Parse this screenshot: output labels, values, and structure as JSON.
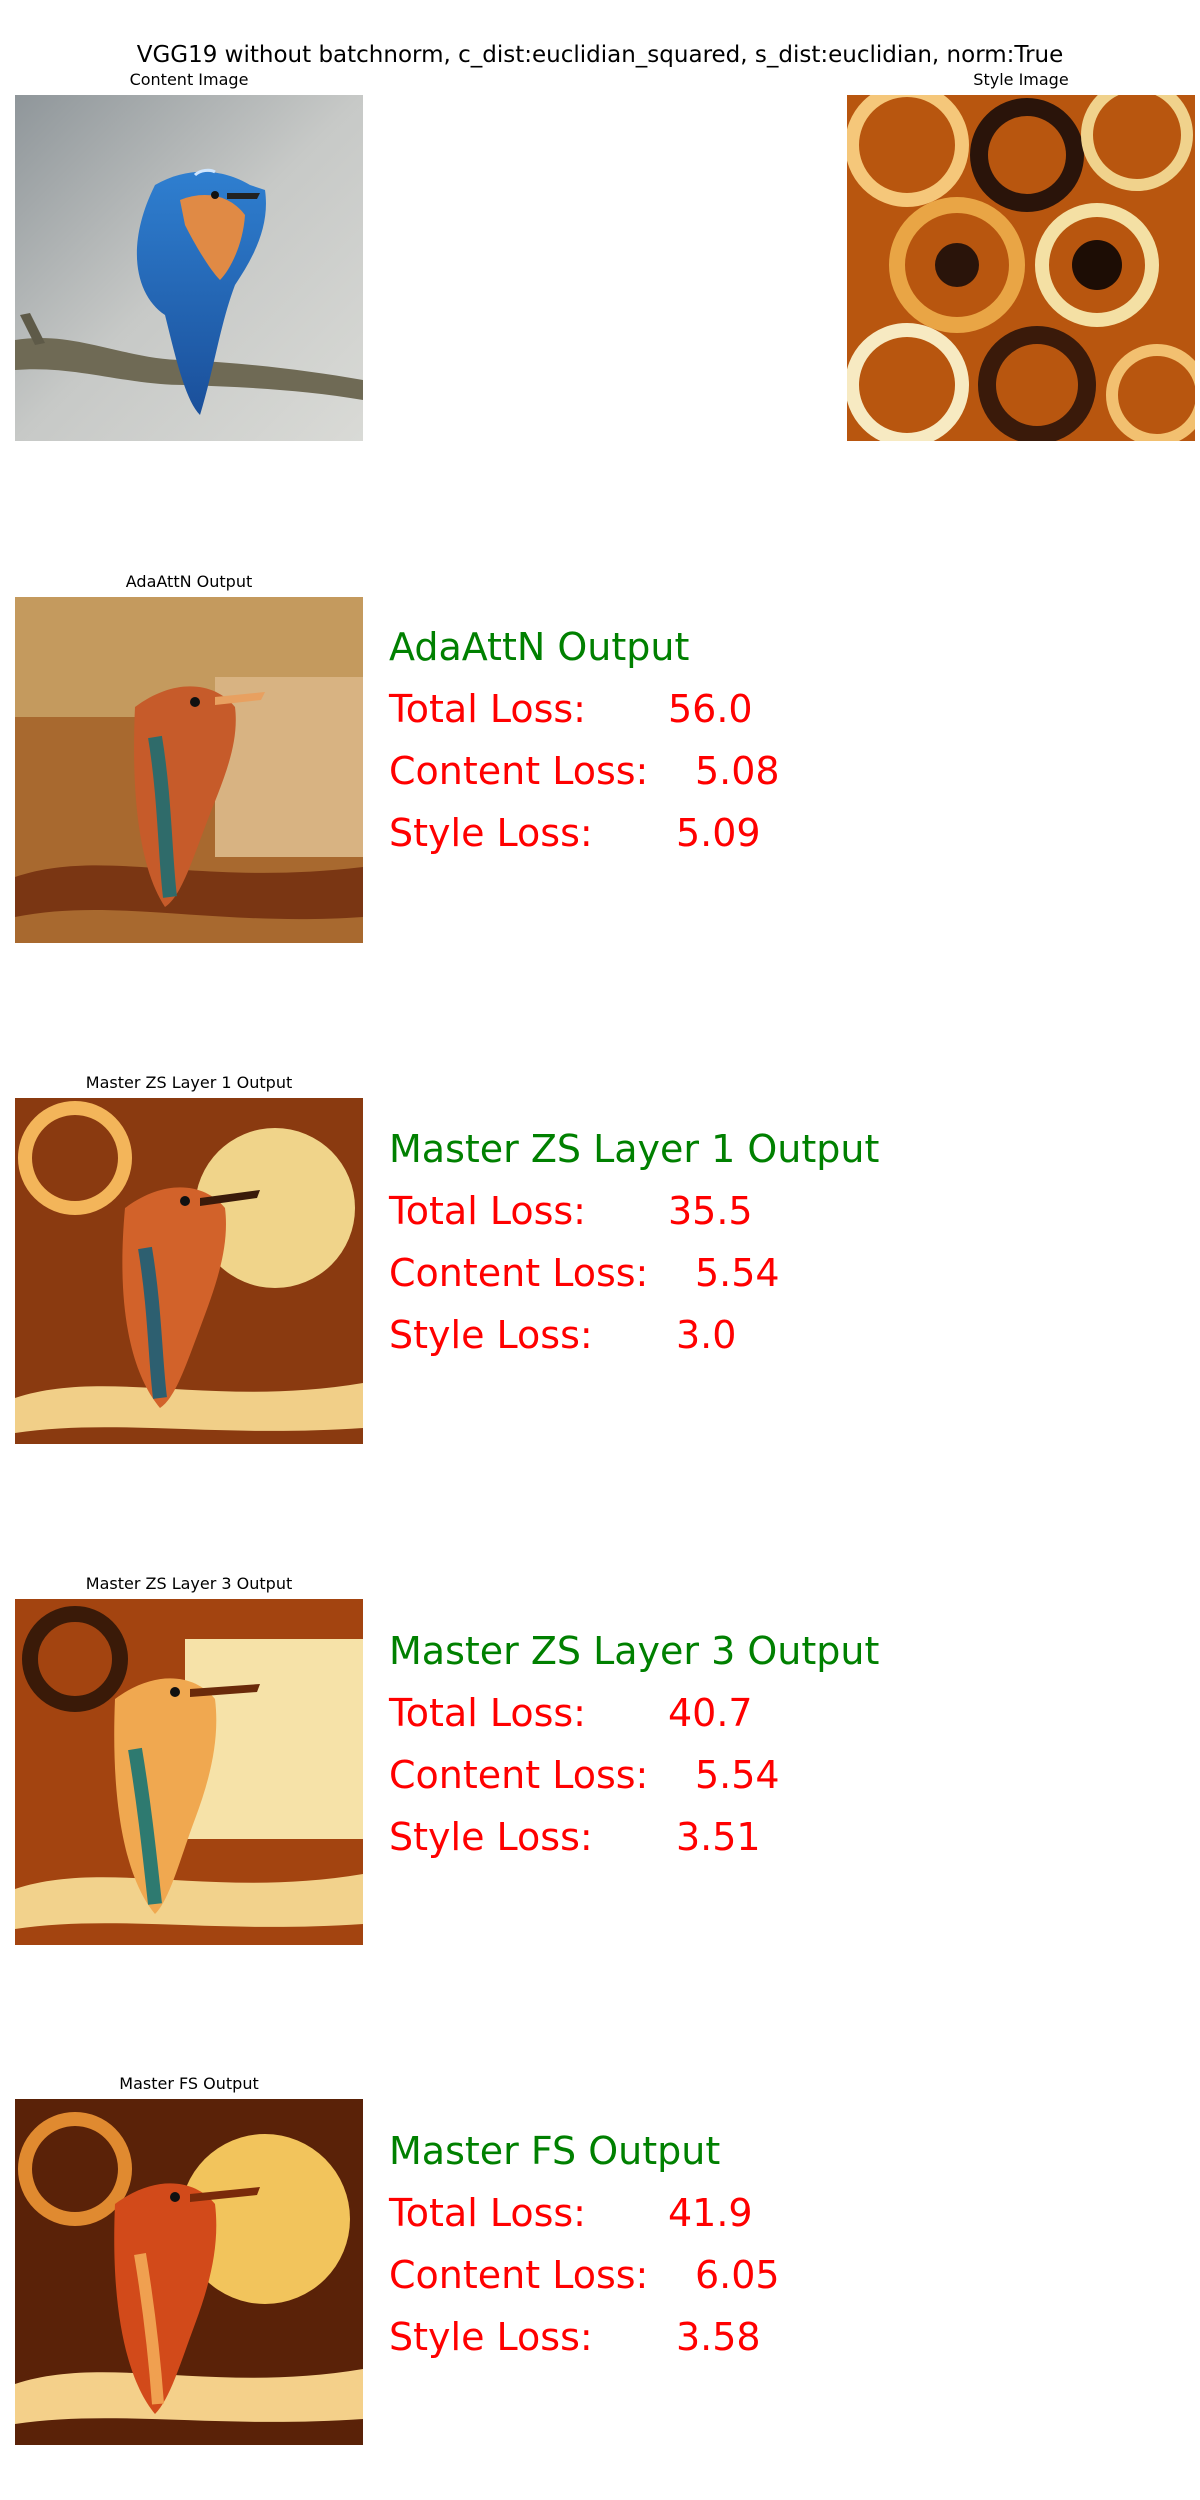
{
  "suptitle": "VGG19 without batchnorm, c_dist:euclidian_squared, s_dist:euclidian, norm:True",
  "content_caption": "Content Image",
  "style_caption": "Style Image",
  "colors": {
    "heading": "#008000",
    "metric": "#ff0000"
  },
  "outputs": [
    {
      "caption": "AdaAttN Output",
      "heading": "AdaAttN Output",
      "total_label": "Total Loss:",
      "total": "56.0",
      "content_label": "Content Loss:",
      "content": "5.08",
      "style_label": "Style Loss:",
      "style": "5.09"
    },
    {
      "caption": "Master ZS Layer 1 Output",
      "heading": "Master ZS Layer 1 Output",
      "total_label": "Total Loss:",
      "total": "35.5",
      "content_label": "Content Loss:",
      "content": "5.54",
      "style_label": "Style Loss:",
      "style": "3.0"
    },
    {
      "caption": "Master ZS Layer 3 Output",
      "heading": "Master ZS Layer 3 Output",
      "total_label": "Total Loss:",
      "total": "40.7",
      "content_label": "Content Loss:",
      "content": "5.54",
      "style_label": "Style Loss:",
      "style": "3.51"
    },
    {
      "caption": "Master FS Output",
      "heading": "Master FS Output",
      "total_label": "Total Loss:",
      "total": "41.9",
      "content_label": "Content Loss:",
      "content": "6.05",
      "style_label": "Style Loss:",
      "style": "3.58"
    }
  ]
}
